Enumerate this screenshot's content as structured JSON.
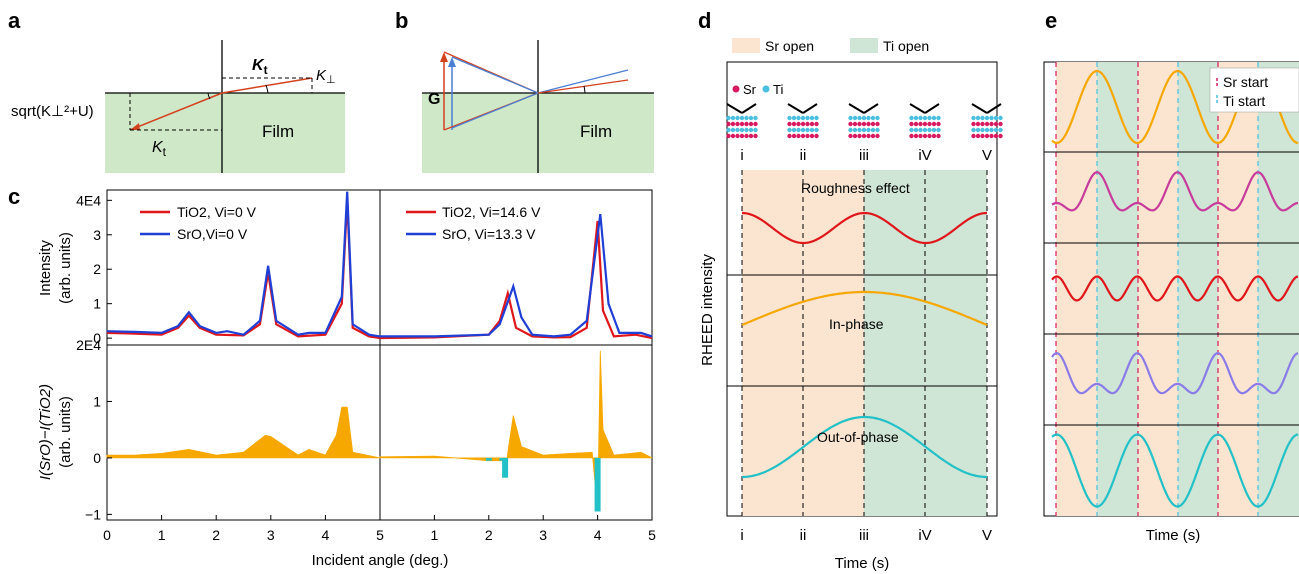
{
  "panels": {
    "a": {
      "label": "a",
      "kt_top": "K",
      "kt_top_sub": "t",
      "kperp": "K",
      "kperp_sym": "⊥",
      "sqrt_label": "sqrt(K⊥²+U)",
      "film": "Film",
      "kt_bottom": "K",
      "kt_bottom_sub": "t"
    },
    "b": {
      "label": "b",
      "g": "G",
      "film": "Film"
    },
    "c": {
      "label": "c",
      "ylabel_top_1": "Intensity",
      "ylabel_top_2": "(arb. units)",
      "ylabel_bottom_1": "I(SrO)−I(TiO2)",
      "ylabel_bottom_2": "(arb. units)",
      "xlabel": "Incident angle (deg.)",
      "top_yticks": [
        "4E4",
        "3",
        "2",
        "1",
        "0"
      ],
      "bottom_yticks": [
        "2E4",
        "1",
        "0",
        "−1"
      ],
      "xticks": [
        "0",
        "1",
        "2",
        "3",
        "4",
        "5"
      ],
      "legend_left": [
        "TiO2, Vi=0 V",
        "SrO,Vi=0 V"
      ],
      "legend_right": [
        "TiO2, Vi=14.6 V",
        "SrO, Vi=13.3 V"
      ]
    },
    "d": {
      "label": "d",
      "legend_sr": "Sr open",
      "legend_ti": "Ti open",
      "atom_sr": "Sr",
      "atom_ti": "Ti",
      "stages": [
        "i",
        "ii",
        "iii",
        "iV",
        "V"
      ],
      "curves": [
        "Roughness effect",
        "In-phase",
        "Out-of-phase"
      ],
      "ylabel": "RHEED intensity",
      "xlabel": "Time (s)",
      "xticks": [
        "i",
        "ii",
        "iii",
        "iV",
        "V"
      ]
    },
    "e": {
      "label": "e",
      "legend": [
        "Sr start",
        "Ti start"
      ],
      "xlabel": "Time (s)"
    }
  },
  "colors": {
    "red": "#e0161b",
    "blue": "#1f3fd6",
    "orange": "#f6a800",
    "cyan": "#22c1c8",
    "magenta": "#c83b9c",
    "purple": "#8a7be8",
    "film_green": "#cfe8c8",
    "sr_shade": "#fbe5d0",
    "ti_shade": "#cfe5d5",
    "sr_atom": "#d81b60",
    "ti_atom": "#4bbfe0"
  },
  "chart_data": [
    {
      "type": "line",
      "title": "",
      "xlabel": "Incident angle (deg.)",
      "ylabel": "Intensity (arb. units)",
      "xlim": [
        0,
        5
      ],
      "ylim": [
        -0.2,
        4.3
      ],
      "series": [
        {
          "name": "TiO2, Vi=0 V",
          "x": [
            0.0,
            0.5,
            1.0,
            1.3,
            1.5,
            1.7,
            2.0,
            2.5,
            2.8,
            2.95,
            3.1,
            3.5,
            4.0,
            4.3,
            4.4,
            4.5,
            4.8,
            5.0
          ],
          "values": [
            0.15,
            0.13,
            0.1,
            0.3,
            0.65,
            0.3,
            0.1,
            0.08,
            0.4,
            1.9,
            0.4,
            0.05,
            0.1,
            1.0,
            4.0,
            0.3,
            0.05,
            0.0
          ]
        },
        {
          "name": "SrO,Vi=0 V",
          "x": [
            0.0,
            0.5,
            1.0,
            1.3,
            1.5,
            1.7,
            2.0,
            2.2,
            2.5,
            2.8,
            2.95,
            3.1,
            3.5,
            3.7,
            4.0,
            4.3,
            4.4,
            4.5,
            4.8,
            5.0
          ],
          "values": [
            0.2,
            0.18,
            0.15,
            0.35,
            0.75,
            0.35,
            0.15,
            0.2,
            0.1,
            0.5,
            2.1,
            0.5,
            0.1,
            0.15,
            0.15,
            1.2,
            4.25,
            0.4,
            0.1,
            0.05
          ]
        }
      ]
    },
    {
      "type": "line",
      "title": "",
      "xlabel": "Incident angle (deg.)",
      "ylabel": "Intensity (arb. units)",
      "xlim": [
        0,
        5
      ],
      "ylim": [
        -0.2,
        4.3
      ],
      "series": [
        {
          "name": "TiO2, Vi=14.6 V",
          "x": [
            0.0,
            1.0,
            2.0,
            2.2,
            2.35,
            2.5,
            2.8,
            3.2,
            3.5,
            3.8,
            4.0,
            4.1,
            4.3,
            4.7,
            5.0
          ],
          "values": [
            0.0,
            0.02,
            0.1,
            0.5,
            1.3,
            0.3,
            0.05,
            0.02,
            0.03,
            0.3,
            3.4,
            0.8,
            0.05,
            0.1,
            0.0
          ]
        },
        {
          "name": "SrO, Vi=13.3 V",
          "x": [
            0.0,
            1.0,
            2.0,
            2.2,
            2.45,
            2.6,
            2.8,
            3.2,
            3.5,
            3.8,
            4.05,
            4.2,
            4.4,
            4.8,
            5.0
          ],
          "values": [
            0.05,
            0.05,
            0.1,
            0.4,
            1.5,
            0.6,
            0.1,
            0.05,
            0.1,
            0.5,
            3.6,
            1.0,
            0.15,
            0.15,
            0.05
          ]
        }
      ]
    },
    {
      "type": "area",
      "title": "",
      "xlabel": "Incident angle (deg.)",
      "ylabel": "I(SrO)−I(TiO2) (arb. units)",
      "xlim": [
        0,
        5
      ],
      "ylim": [
        -1.1,
        2.0
      ],
      "series": [
        {
          "name": "",
          "x": [
            0.0,
            0.5,
            1.0,
            1.5,
            2.0,
            2.5,
            2.9,
            3.0,
            3.5,
            3.7,
            4.0,
            4.2,
            4.3,
            4.4,
            4.5,
            5.0
          ],
          "values": [
            0.05,
            0.05,
            0.08,
            0.15,
            0.05,
            0.1,
            0.4,
            0.38,
            0.05,
            0.15,
            0.05,
            0.4,
            0.9,
            0.9,
            0.1,
            0.0
          ]
        }
      ]
    },
    {
      "type": "area",
      "title": "",
      "xlabel": "Incident angle (deg.)",
      "ylabel": "I(SrO)−I(TiO2) (arb. units)",
      "xlim": [
        0,
        5
      ],
      "ylim": [
        -1.1,
        2.0
      ],
      "series": [
        {
          "name": "",
          "x": [
            0.0,
            1.0,
            2.0,
            2.25,
            2.3,
            2.35,
            2.45,
            2.6,
            3.0,
            3.5,
            3.9,
            4.0,
            4.05,
            4.1,
            4.3,
            4.8,
            5.0
          ],
          "values": [
            0.02,
            0.03,
            -0.05,
            -0.05,
            -0.35,
            0.1,
            0.75,
            0.2,
            0.05,
            0.08,
            0.1,
            -0.95,
            1.9,
            0.5,
            0.05,
            0.1,
            0.0
          ]
        }
      ]
    }
  ]
}
